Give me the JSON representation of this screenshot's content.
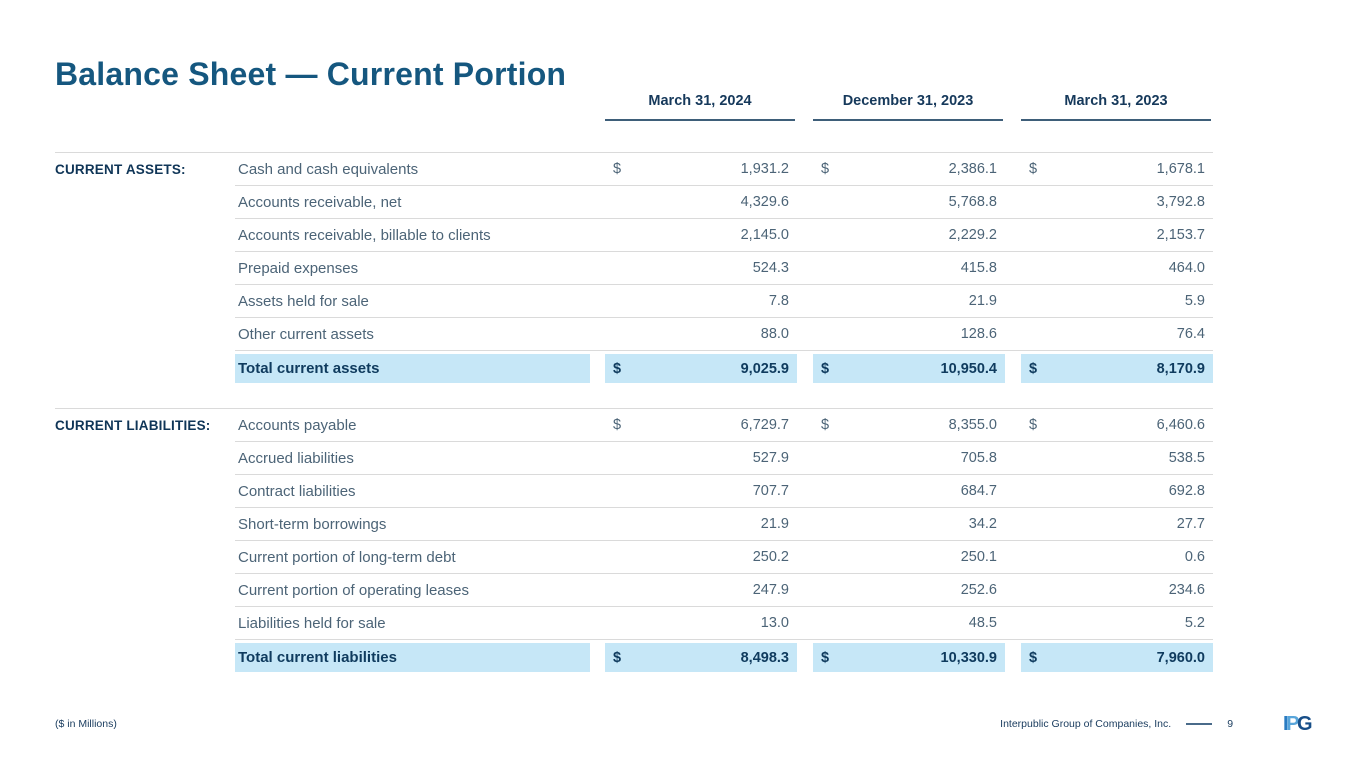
{
  "title": "Balance Sheet — Current Portion",
  "columns": [
    "March 31, 2024",
    "December 31, 2023",
    "March 31, 2023"
  ],
  "sections": [
    {
      "header": "CURRENT ASSETS:",
      "rows": [
        {
          "label": "Cash and cash equivalents",
          "dollar": "$",
          "values": [
            "1,931.2",
            "2,386.1",
            "1,678.1"
          ]
        },
        {
          "label": "Accounts receivable, net",
          "values": [
            "4,329.6",
            "5,768.8",
            "3,792.8"
          ]
        },
        {
          "label": "Accounts receivable, billable to clients",
          "values": [
            "2,145.0",
            "2,229.2",
            "2,153.7"
          ]
        },
        {
          "label": "Prepaid expenses",
          "values": [
            "524.3",
            "415.8",
            "464.0"
          ]
        },
        {
          "label": "Assets held for sale",
          "values": [
            "7.8",
            "21.9",
            "5.9"
          ]
        },
        {
          "label": "Other current assets",
          "values": [
            "88.0",
            "128.6",
            "76.4"
          ]
        }
      ],
      "total": {
        "label": "Total current assets",
        "dollar": "$",
        "values": [
          "9,025.9",
          "10,950.4",
          "8,170.9"
        ]
      }
    },
    {
      "header": "CURRENT LIABILITIES:",
      "rows": [
        {
          "label": "Accounts payable",
          "dollar": "$",
          "values": [
            "6,729.7",
            "8,355.0",
            "6,460.6"
          ]
        },
        {
          "label": "Accrued liabilities",
          "values": [
            "527.9",
            "705.8",
            "538.5"
          ]
        },
        {
          "label": "Contract liabilities",
          "values": [
            "707.7",
            "684.7",
            "692.8"
          ]
        },
        {
          "label": "Short-term borrowings",
          "values": [
            "21.9",
            "34.2",
            "27.7"
          ]
        },
        {
          "label": "Current portion of long-term debt",
          "values": [
            "250.2",
            "250.1",
            "0.6"
          ]
        },
        {
          "label": "Current portion of operating leases",
          "values": [
            "247.9",
            "252.6",
            "234.6"
          ]
        },
        {
          "label": "Liabilities held for sale",
          "values": [
            "13.0",
            "48.5",
            "5.2"
          ]
        }
      ],
      "total": {
        "label": "Total current liabilities",
        "dollar": "$",
        "values": [
          "8,498.3",
          "10,330.9",
          "7,960.0"
        ]
      }
    }
  ],
  "footer": {
    "note": "($ in Millions)",
    "company": "Interpublic Group of Companies, Inc.",
    "page_number": "9",
    "logo": {
      "i": "I",
      "p": "P",
      "g": "G"
    }
  },
  "colors": {
    "title_blue": "#15577F",
    "section_navy": "#0F3557",
    "row_text": "#4C6477",
    "total_highlight": "#C6E7F7",
    "separator": "#DADADA",
    "date_underline": "#3E5E79"
  }
}
